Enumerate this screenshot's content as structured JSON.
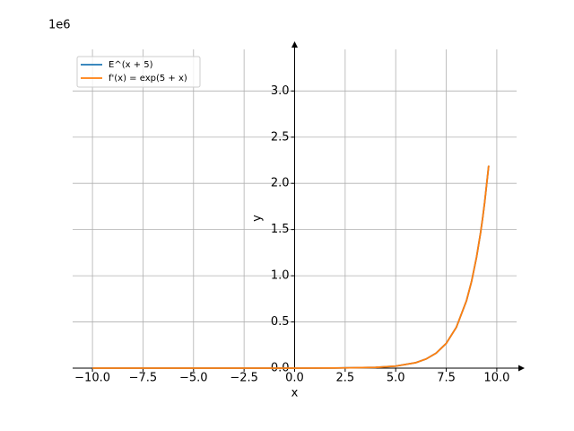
{
  "chart_data": {
    "type": "line",
    "x_label": "x",
    "y_label": "y",
    "y_offset_label": "1e6",
    "x": [
      -10,
      -5,
      0,
      2,
      4,
      5,
      6,
      6.5,
      7,
      7.5,
      8,
      8.5,
      8.75,
      9,
      9.2,
      9.3,
      9.4,
      9.6
    ],
    "series": [
      {
        "name": "E^(x + 5)",
        "color": "#1f77b4",
        "values": [
          0,
          1e-06,
          0.000148,
          0.0011,
          0.0081,
          0.022,
          0.0599,
          0.0987,
          0.1628,
          0.2683,
          0.4424,
          0.7294,
          0.9366,
          1.2026,
          1.4689,
          1.6233,
          1.7941,
          2.1913
        ]
      },
      {
        "name": "f'(x) = exp(5 + x)",
        "color": "#ff7f0e",
        "values": [
          0,
          1e-06,
          0.000148,
          0.0011,
          0.0081,
          0.022,
          0.0599,
          0.0987,
          0.1628,
          0.2683,
          0.4424,
          0.7294,
          0.9366,
          1.2026,
          1.4689,
          1.6233,
          1.7941,
          2.1913
        ]
      }
    ],
    "xlim": [
      -10.98,
      10.98
    ],
    "ylim": [
      0,
      3.45
    ],
    "xticks": [
      {
        "value": -10,
        "label": "−10.0"
      },
      {
        "value": -7.5,
        "label": "−7.5"
      },
      {
        "value": -5,
        "label": "−5.0"
      },
      {
        "value": -2.5,
        "label": "−2.5"
      },
      {
        "value": 0,
        "label": "0.0"
      },
      {
        "value": 2.5,
        "label": "2.5"
      },
      {
        "value": 5,
        "label": "5.0"
      },
      {
        "value": 7.5,
        "label": "7.5"
      },
      {
        "value": 10,
        "label": "10.0"
      }
    ],
    "yticks": [
      {
        "value": 0,
        "label": "0.0"
      },
      {
        "value": 0.5,
        "label": "0.5"
      },
      {
        "value": 1,
        "label": "1.0"
      },
      {
        "value": 1.5,
        "label": "1.5"
      },
      {
        "value": 2,
        "label": "2.0"
      },
      {
        "value": 2.5,
        "label": "2.5"
      },
      {
        "value": 3,
        "label": "3.0"
      }
    ],
    "grid": true,
    "legend": "upper left"
  }
}
